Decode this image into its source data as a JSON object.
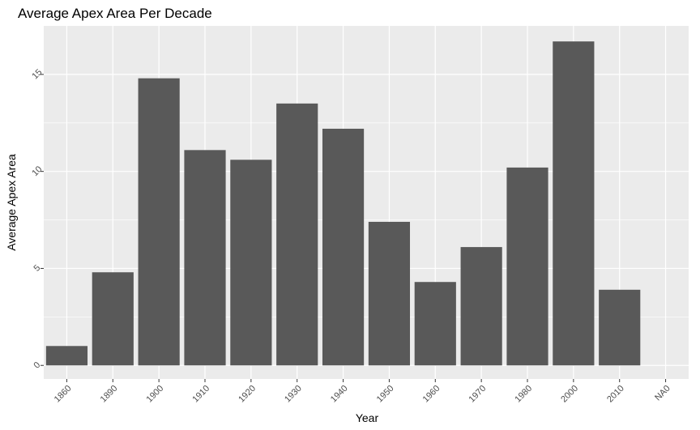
{
  "chart_data": {
    "type": "bar",
    "title": "Average Apex Area Per Decade",
    "xlabel": "Year",
    "ylabel": "Average Apex Area",
    "categories": [
      "1860",
      "1890",
      "1900",
      "1910",
      "1920",
      "1930",
      "1940",
      "1950",
      "1960",
      "1970",
      "1980",
      "2000",
      "2010",
      "NA0"
    ],
    "values": [
      1.0,
      4.8,
      14.8,
      11.1,
      10.6,
      13.5,
      12.2,
      7.4,
      4.3,
      6.1,
      10.2,
      16.7,
      3.9,
      0
    ],
    "ylim": [
      -0.7,
      17.5
    ],
    "yticks": [
      0,
      5,
      10,
      15
    ],
    "ytick_labels": [
      "0",
      "5",
      "10",
      "15"
    ],
    "grid": true,
    "legend": "none",
    "colors": {
      "panel": "#ebebeb",
      "bar": "#595959",
      "grid": "#ffffff"
    }
  }
}
